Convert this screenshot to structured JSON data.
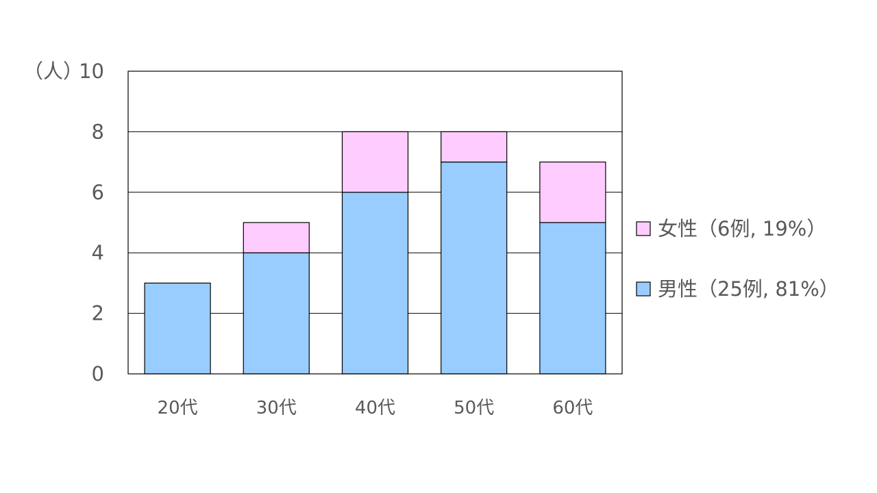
{
  "chart_data": {
    "type": "bar",
    "stacked": true,
    "title": "",
    "xlabel": "",
    "ylabel": "（人）",
    "categories": [
      "20代",
      "30代",
      "40代",
      "50代",
      "60代"
    ],
    "series": [
      {
        "name": "男性（25例, 81%）",
        "values": [
          3,
          4,
          6,
          7,
          5
        ],
        "color": "#99CCFF"
      },
      {
        "name": "女性（6例, 19%）",
        "values": [
          0,
          1,
          2,
          1,
          2
        ],
        "color": "#FFCCFF"
      }
    ],
    "ylim": [
      0,
      10
    ],
    "yticks": [
      0,
      2,
      4,
      6,
      8,
      10
    ],
    "grid": true,
    "legend_position": "right"
  }
}
